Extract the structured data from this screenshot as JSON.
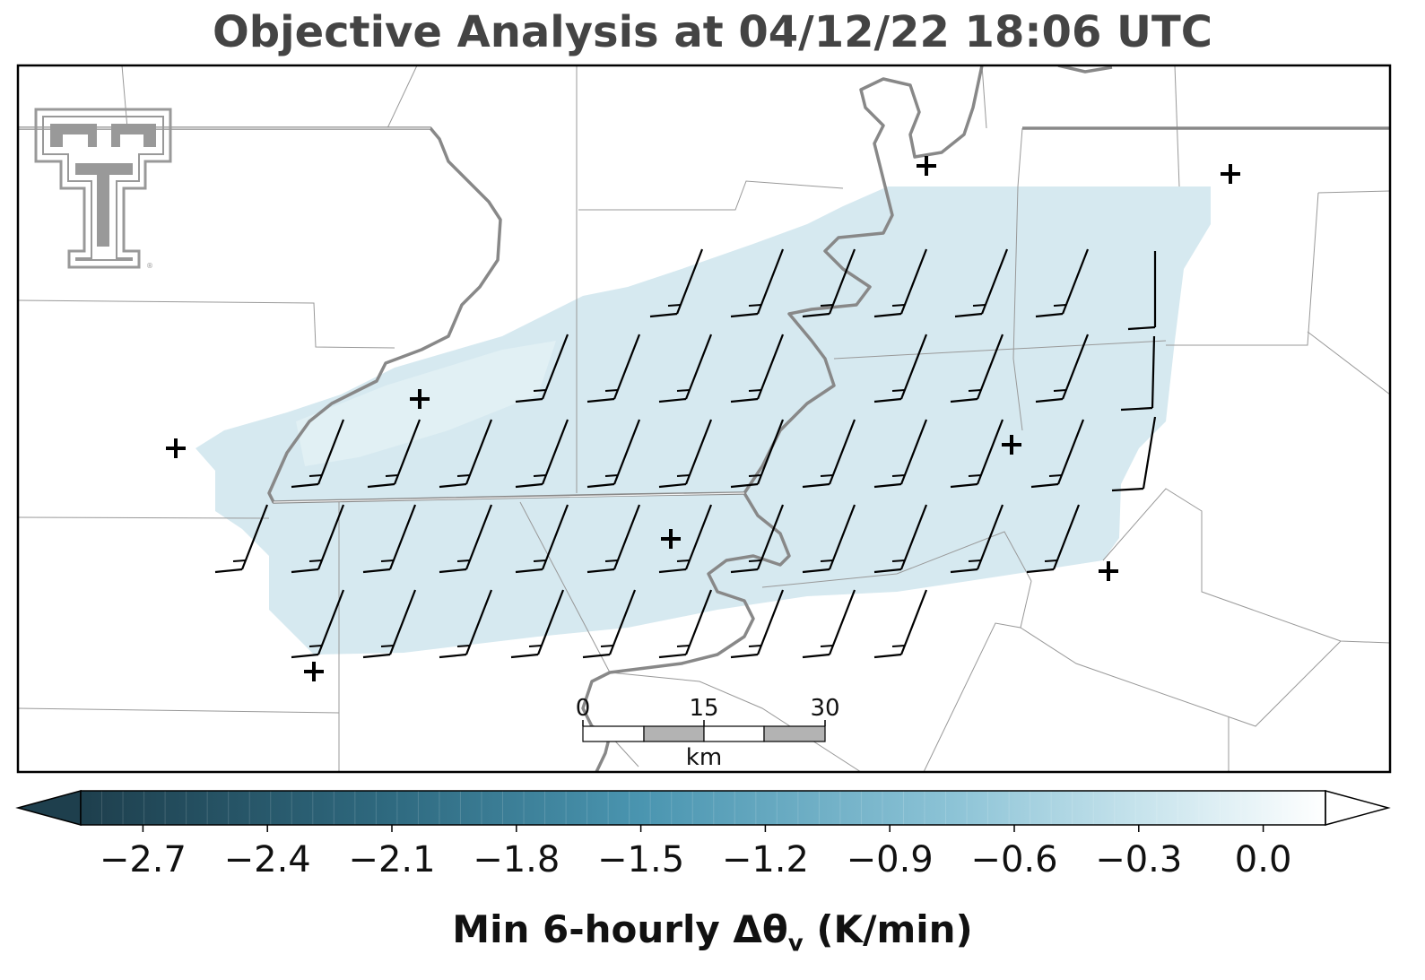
{
  "title": "Objective Analysis at 04/12/22 18:06 UTC",
  "colorbar": {
    "label_main": "Min 6-hourly Δθ",
    "label_sub": "v",
    "label_unit": " (K/min)",
    "ticks": [
      "−2.7",
      "−2.4",
      "−2.1",
      "−1.8",
      "−1.5",
      "−1.2",
      "−0.9",
      "−0.6",
      "−0.3",
      "0.0"
    ],
    "min": -2.85,
    "max": 0.15,
    "colors": [
      "#1e3f4d",
      "#2f6a80",
      "#4a95b0",
      "#8cc3d6",
      "#c6e3ec",
      "#ffffff"
    ]
  },
  "scale_bar": {
    "labels": [
      "0",
      "15",
      "30"
    ],
    "unit": "km"
  },
  "colors": {
    "field": "#d6e9f0",
    "field_light": "#e4f1f5",
    "boundary_thin": "#999999",
    "boundary_thick": "#888888",
    "barb": "#000000",
    "logo": "#999999"
  },
  "icons": {
    "logo": "texas-tech-double-t-logo",
    "station": "plus-marker",
    "barb": "wind-barb-icon"
  }
}
